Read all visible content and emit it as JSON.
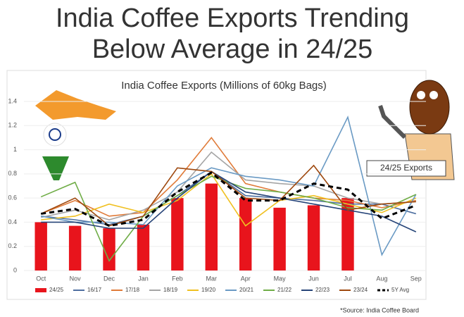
{
  "chart_data": {
    "type": "bar-line",
    "headline": [
      "India Coffee Exports Trending",
      "Below Average in 24/25"
    ],
    "title": "India Coffee Exports (Millions of 60kg Bags)",
    "annotation": "24/25 Exports",
    "source": "*Source: India Coffee Board",
    "categories": [
      "Oct",
      "Nov",
      "Dec",
      "Jan",
      "Feb",
      "Mar",
      "Apr",
      "May",
      "Jun",
      "Jul",
      "Aug",
      "Sep"
    ],
    "ylim": [
      0,
      1.4
    ],
    "yticks": [
      0,
      0.2,
      0.4,
      0.6,
      0.8,
      1,
      1.2,
      1.4
    ],
    "grid": true,
    "series": [
      {
        "name": "24/25",
        "type": "bar",
        "color": "#e8141c",
        "values": [
          0.4,
          0.37,
          0.35,
          0.38,
          0.6,
          0.72,
          0.6,
          0.52,
          0.54,
          0.6,
          null,
          null
        ]
      },
      {
        "name": "16/17",
        "type": "line",
        "color": "#4e6fa0",
        "values": [
          0.45,
          0.42,
          0.38,
          0.45,
          0.62,
          0.82,
          0.62,
          0.6,
          0.58,
          0.55,
          0.55,
          0.47
        ]
      },
      {
        "name": "17/18",
        "type": "line",
        "color": "#e07b39",
        "values": [
          0.47,
          0.58,
          0.45,
          0.48,
          0.75,
          1.1,
          0.72,
          0.65,
          0.6,
          0.58,
          0.52,
          0.58
        ]
      },
      {
        "name": "18/19",
        "type": "line",
        "color": "#a5a5a5",
        "values": [
          0.44,
          0.5,
          0.42,
          0.5,
          0.65,
          0.98,
          0.75,
          0.72,
          0.7,
          0.6,
          0.55,
          0.57
        ]
      },
      {
        "name": "19/20",
        "type": "line",
        "color": "#f0c020",
        "values": [
          0.42,
          0.45,
          0.55,
          0.48,
          0.58,
          0.8,
          0.37,
          0.58,
          0.62,
          0.55,
          0.48,
          0.6
        ]
      },
      {
        "name": "20/21",
        "type": "line",
        "color": "#6a9ac4",
        "values": [
          0.45,
          0.4,
          0.4,
          0.38,
          0.7,
          0.85,
          0.78,
          0.75,
          0.7,
          1.27,
          0.13,
          0.63
        ]
      },
      {
        "name": "21/22",
        "type": "line",
        "color": "#70ad47",
        "values": [
          0.61,
          0.73,
          0.08,
          0.45,
          0.62,
          0.78,
          0.68,
          0.65,
          0.6,
          0.52,
          0.5,
          0.63
        ]
      },
      {
        "name": "22/23",
        "type": "line",
        "color": "#264478",
        "values": [
          0.4,
          0.4,
          0.35,
          0.35,
          0.6,
          0.82,
          0.65,
          0.6,
          0.55,
          0.5,
          0.45,
          0.32
        ]
      },
      {
        "name": "23/24",
        "type": "line",
        "color": "#9e480e",
        "values": [
          0.47,
          0.6,
          0.37,
          0.45,
          0.85,
          0.82,
          0.6,
          0.58,
          0.87,
          0.5,
          0.55,
          0.57
        ]
      },
      {
        "name": "5Y Avg",
        "type": "line",
        "dashed": true,
        "color": "#000000",
        "values": [
          0.47,
          0.51,
          0.37,
          0.42,
          0.65,
          0.81,
          0.58,
          0.58,
          0.72,
          0.67,
          0.43,
          0.54
        ]
      }
    ]
  }
}
